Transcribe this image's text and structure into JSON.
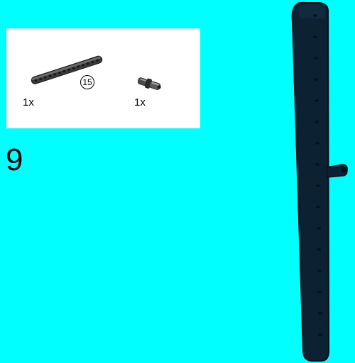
{
  "colors": {
    "background": "#00ffff",
    "panel": "#ffffff",
    "beam_dark": "#0c2233",
    "beam_outline": "#06121c",
    "part_gray": "#3a3a3a",
    "part_light": "#8a8a8a"
  },
  "parts_list": {
    "items": [
      {
        "name": "technic-beam-15",
        "quantity": "1x",
        "length_label": "15"
      },
      {
        "name": "technic-axle-pin",
        "quantity": "1x"
      }
    ]
  },
  "step": {
    "number": "9"
  }
}
